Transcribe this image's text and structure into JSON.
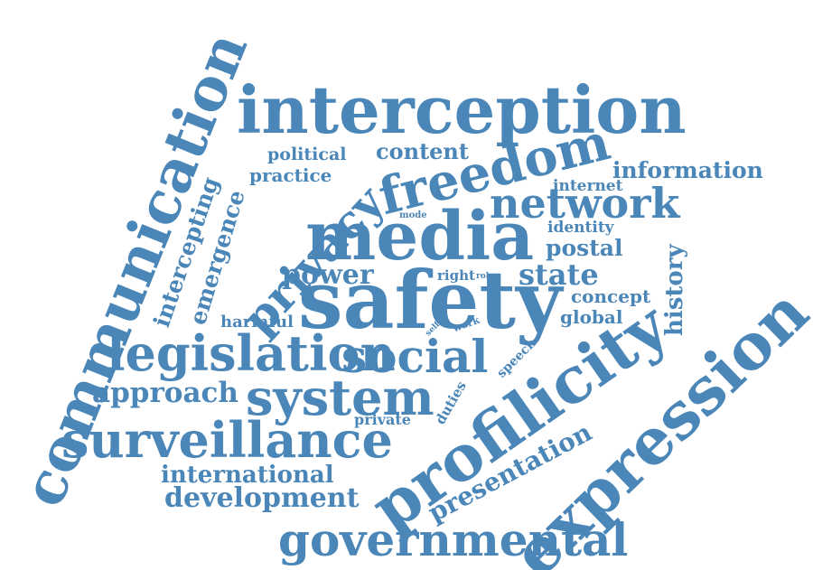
{
  "color": "#4a86b8",
  "words": [
    {
      "text": "interception"
    },
    {
      "text": "communication"
    },
    {
      "text": "media"
    },
    {
      "text": "safety"
    },
    {
      "text": "profilicity"
    },
    {
      "text": "expression"
    },
    {
      "text": "freedom"
    },
    {
      "text": "privacy"
    },
    {
      "text": "network"
    },
    {
      "text": "surveillance"
    },
    {
      "text": "legislation"
    },
    {
      "text": "system"
    },
    {
      "text": "social"
    },
    {
      "text": "governmental"
    },
    {
      "text": "development"
    },
    {
      "text": "international"
    },
    {
      "text": "approach"
    },
    {
      "text": "presentation"
    },
    {
      "text": "information"
    },
    {
      "text": "content"
    },
    {
      "text": "political"
    },
    {
      "text": "practice"
    },
    {
      "text": "intercepting"
    },
    {
      "text": "emergence"
    },
    {
      "text": "power"
    },
    {
      "text": "state"
    },
    {
      "text": "postal"
    },
    {
      "text": "identity"
    },
    {
      "text": "internet"
    },
    {
      "text": "history"
    },
    {
      "text": "concept"
    },
    {
      "text": "global"
    },
    {
      "text": "harmful"
    },
    {
      "text": "right"
    },
    {
      "text": "role"
    },
    {
      "text": "mode"
    },
    {
      "text": "self"
    },
    {
      "text": "work"
    },
    {
      "text": "speech"
    },
    {
      "text": "duties"
    },
    {
      "text": "private"
    }
  ]
}
